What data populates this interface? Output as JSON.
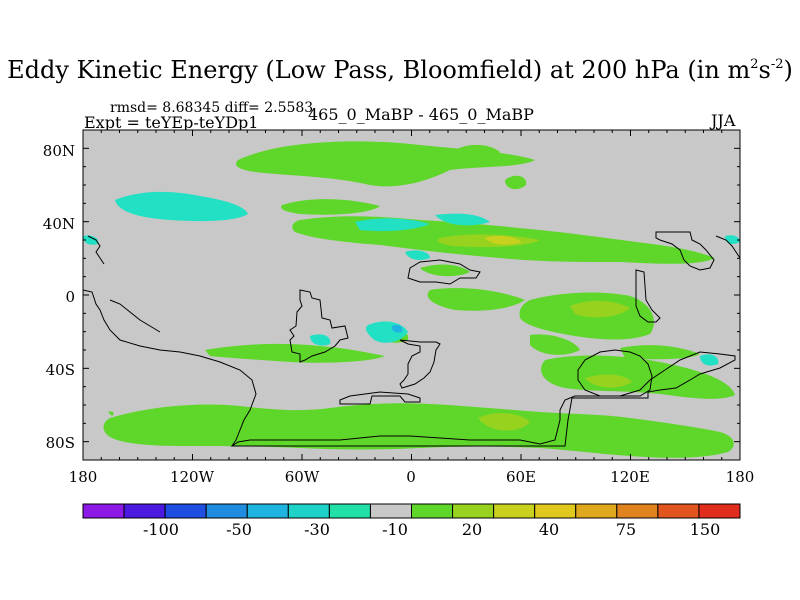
{
  "title": {
    "main": "Eddy Kinetic Energy (Low Pass, Bloomfield) at 200 hPa (in m",
    "sup1": "2",
    "mid": "s",
    "sup2": "-2",
    "end": ")"
  },
  "stats": {
    "rmsd_text": "rmsd= 8.68345 diff= 2.5583",
    "expt_text": "Expt = teYEp-teYDp1",
    "center_label": "465_0_MaBP - 465_0_MaBP",
    "season": "JJA"
  },
  "axes": {
    "y_labels": [
      "80N",
      "40N",
      "0",
      "40S",
      "80S"
    ],
    "x_labels": [
      "180",
      "120W",
      "60W",
      "0",
      "60E",
      "120E",
      "180"
    ]
  },
  "colorbar": {
    "colors": [
      "#8c19e6",
      "#4b19e0",
      "#1f4fe0",
      "#1f8ce0",
      "#1fb4e0",
      "#1fd2c8",
      "#22e0a8",
      "#c8c8c8",
      "#5fd72a",
      "#96d21e",
      "#c8d21e",
      "#e0c81e",
      "#e0a81e",
      "#e0821e",
      "#e0561e",
      "#e02d1e"
    ],
    "labels": [
      "-100",
      "-50",
      "-30",
      "-10",
      "20",
      "40",
      "75",
      "150"
    ]
  },
  "map_colors": {
    "background": "#c8c8c8",
    "green": "#5fd72a",
    "lime": "#96d21e",
    "yellow": "#c8d21e",
    "teal": "#22e0c4",
    "cyan": "#1fb4e0",
    "coast": "#000000"
  }
}
